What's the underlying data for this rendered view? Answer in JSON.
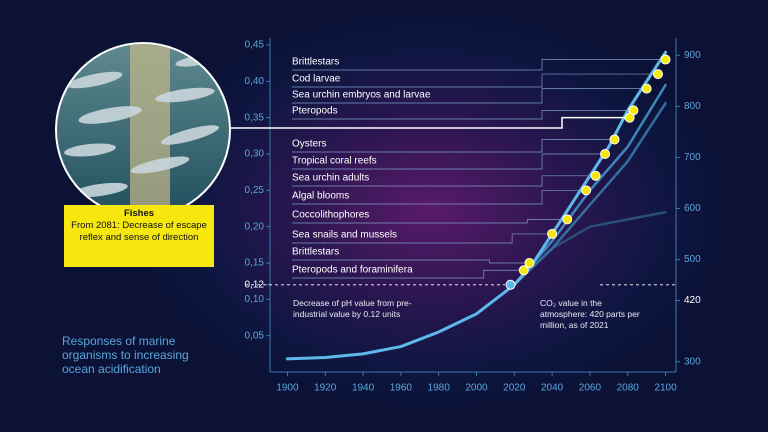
{
  "chart_data": {
    "type": "line",
    "title": "Responses of marine organisms to increasing ocean acidification",
    "xlim": [
      1895,
      2105
    ],
    "xticks": [
      1900,
      1920,
      1940,
      1960,
      1980,
      2000,
      2020,
      2040,
      2060,
      2080,
      2100
    ],
    "ylim": [
      0,
      0.45
    ],
    "yticks": [
      {
        "value": 0.05,
        "label": "0,05"
      },
      {
        "value": 0.1,
        "label": "0,10"
      },
      {
        "value": 0.12,
        "label": "0,12"
      },
      {
        "value": 0.15,
        "label": "0,15"
      },
      {
        "value": 0.2,
        "label": "0,20"
      },
      {
        "value": 0.25,
        "label": "0,25"
      },
      {
        "value": 0.3,
        "label": "0,30"
      },
      {
        "value": 0.35,
        "label": "0,35"
      },
      {
        "value": 0.4,
        "label": "0,40"
      },
      {
        "value": 0.45,
        "label": "0,45"
      }
    ],
    "y2lim": [
      280,
      920
    ],
    "y2ticks": [
      300,
      420,
      500,
      600,
      700,
      800,
      900
    ],
    "series": [
      {
        "color": "#5fb8ec",
        "x": [
          1900,
          1920,
          1940,
          1960,
          1980,
          2000,
          2020,
          2030,
          2040,
          2050,
          2060,
          2070,
          2080,
          2090,
          2100
        ],
        "values": [
          0.018,
          0.02,
          0.025,
          0.035,
          0.055,
          0.08,
          0.12,
          0.15,
          0.19,
          0.23,
          0.27,
          0.31,
          0.36,
          0.4,
          0.44
        ]
      },
      {
        "color": "#3f86bd",
        "x": [
          2020,
          2040,
          2060,
          2080,
          2100
        ],
        "values": [
          0.12,
          0.18,
          0.25,
          0.31,
          0.395
        ]
      },
      {
        "color": "#336f9f",
        "x": [
          2020,
          2040,
          2060,
          2080,
          2100
        ],
        "values": [
          0.12,
          0.17,
          0.23,
          0.29,
          0.37
        ]
      },
      {
        "color": "#2a4f7a",
        "x": [
          2020,
          2040,
          2060,
          2080,
          2100
        ],
        "values": [
          0.12,
          0.17,
          0.2,
          0.21,
          0.22
        ]
      }
    ],
    "markers": [
      {
        "label": "Brittlestars",
        "x": 2100,
        "value": 0.43
      },
      {
        "label": "Cod larvae",
        "x": 2096,
        "value": 0.41
      },
      {
        "label": "Sea urchin embryos and larvae",
        "x": 2090,
        "value": 0.39
      },
      {
        "label": "Pteropods",
        "x": 2083,
        "value": 0.36
      },
      {
        "label": "Oysters",
        "x": 2073,
        "value": 0.32
      },
      {
        "label": "Tropical coral reefs",
        "x": 2068,
        "value": 0.3
      },
      {
        "label": "Sea urchin adults",
        "x": 2063,
        "value": 0.27
      },
      {
        "label": "Algal blooms",
        "x": 2058,
        "value": 0.25
      },
      {
        "label": "Coccolithophores",
        "x": 2048,
        "value": 0.21
      },
      {
        "label": "Sea snails and mussels",
        "x": 2040,
        "value": 0.19
      },
      {
        "label": "Brittlestars",
        "x": 2028,
        "value": 0.15
      },
      {
        "label": "Pteropods and foraminifera",
        "x": 2025,
        "value": 0.14
      }
    ],
    "fishes": {
      "title": "Fishes",
      "text": "From 2081: Decrease of escape reflex and sense of direction",
      "x": 2081,
      "value": 0.35
    },
    "current": {
      "x": 2018,
      "value": 0.12
    },
    "annotations": [
      "Decrease of pH value from pre-industrial value by 0.12 units",
      "CO₂ value in the atmosphere: 420 parts per million, as of 2021"
    ]
  }
}
